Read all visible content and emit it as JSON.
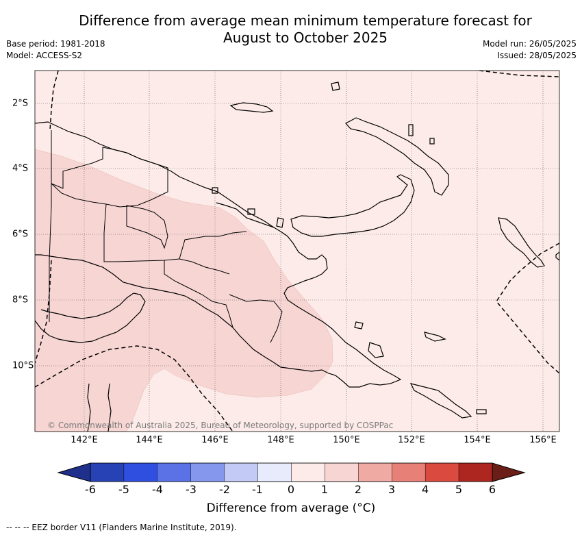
{
  "title_line1": "Difference from average mean minimum temperature forecast for",
  "title_line2": "August to October 2025",
  "base_period": "Base period: 1981-2018",
  "model": "Model: ACCESS-S2",
  "model_run": "Model run: 26/05/2025",
  "issued": "Issued: 28/05/2025",
  "copyright": "© Commonwealth of Australia 2025, Bureau of Meteorology, supported by COSPPac",
  "lon_ticks": [
    "142°E",
    "144°E",
    "146°E",
    "148°E",
    "150°E",
    "152°E",
    "154°E",
    "156°E"
  ],
  "lat_ticks": [
    "2°S",
    "4°S",
    "6°S",
    "8°S",
    "10°S"
  ],
  "colorbar": {
    "label": "Difference from average (°C)",
    "ticks": [
      "-6",
      "-5",
      "-4",
      "-3",
      "-2",
      "-1",
      "0",
      "1",
      "2",
      "3",
      "4",
      "5",
      "6"
    ],
    "colors": [
      "#1f2f8c",
      "#2742b5",
      "#2f4fe0",
      "#5a72e6",
      "#8597ec",
      "#c3caf5",
      "#e8ebfb",
      "#fcebe8",
      "#f6d5d3",
      "#efaaa4",
      "#e78177",
      "#db4a3f",
      "#ad2620",
      "#6b1d17"
    ]
  },
  "legend_note": "-- -- -- EEZ border V11 (Flanders Marine Institute, 2019)."
}
